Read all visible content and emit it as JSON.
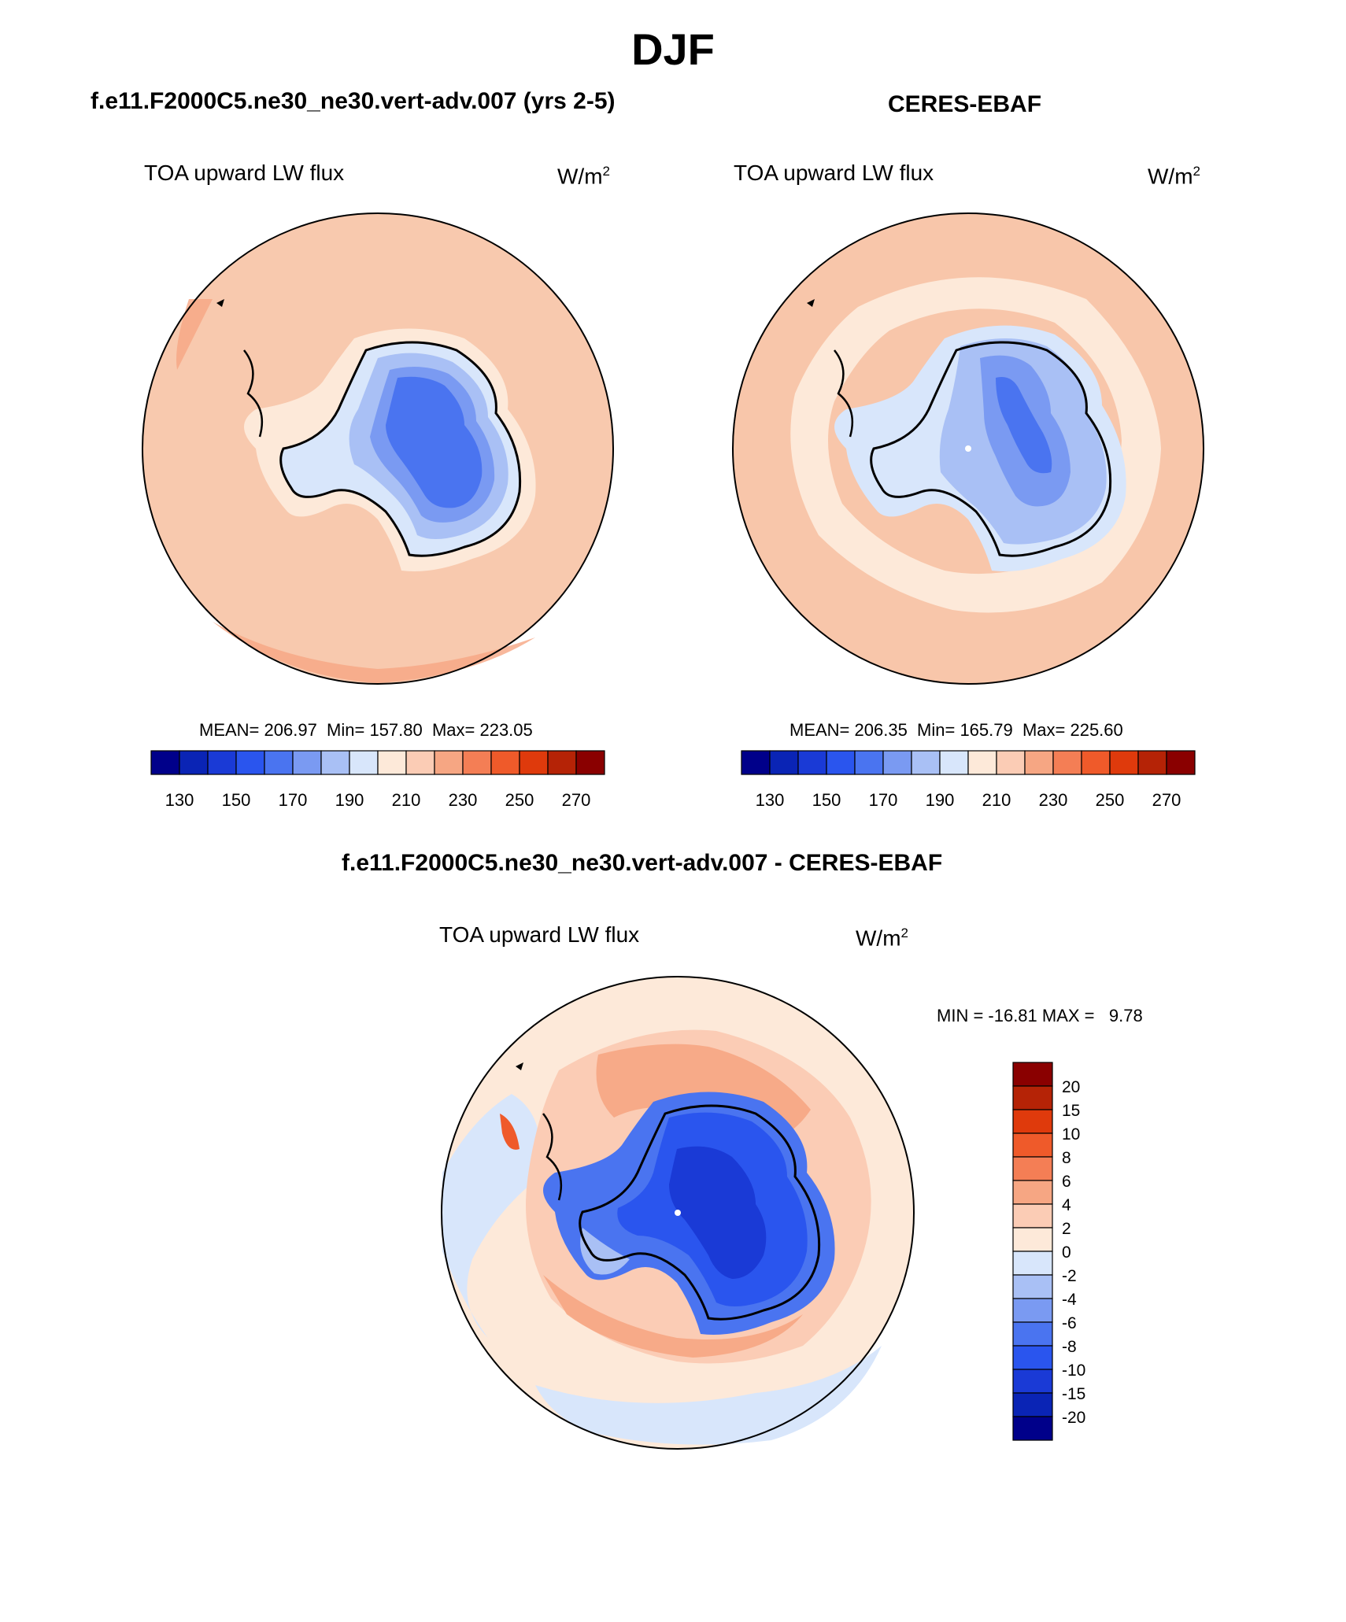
{
  "page_title": "DJF",
  "panels": [
    {
      "title": "f.e11.F2000C5.ne30_ne30.vert-adv.007 (yrs 2-5)",
      "variable": "TOA upward LW flux",
      "units_base": "W/m",
      "units_exp": "2",
      "stats": "MEAN= 206.97  Min= 157.80  Max= 223.05",
      "colorbar_labels": [
        "130",
        "150",
        "170",
        "190",
        "210",
        "230",
        "250",
        "270"
      ]
    },
    {
      "title": "CERES-EBAF",
      "variable": "TOA upward LW flux",
      "units_base": "W/m",
      "units_exp": "2",
      "stats": "MEAN= 206.35  Min= 165.79  Max= 225.60",
      "colorbar_labels": [
        "130",
        "150",
        "170",
        "190",
        "210",
        "230",
        "250",
        "270"
      ]
    }
  ],
  "diff_panel": {
    "title": "f.e11.F2000C5.ne30_ne30.vert-adv.007 - CERES-EBAF",
    "variable": "TOA upward LW flux",
    "units_base": "W/m",
    "units_exp": "2",
    "stats": "MIN = -16.81 MAX =   9.78",
    "colorbar_labels": [
      "20",
      "15",
      "10",
      "8",
      "6",
      "4",
      "2",
      "0",
      "-2",
      "-4",
      "-6",
      "-8",
      "-10",
      "-15",
      "-20"
    ]
  },
  "colors": {
    "palette_16": [
      "#00008a",
      "#0a24b5",
      "#1a3ad6",
      "#2a55ee",
      "#4a74f0",
      "#7a9af2",
      "#a9c0f5",
      "#d8e6fb",
      "#fde9d9",
      "#fbccb5",
      "#f6a683",
      "#f47e55",
      "#ef5a2a",
      "#df3a0c",
      "#b52306",
      "#8a0000"
    ],
    "ocean_model": "#f8c9ae",
    "ocean_obs": "#f8c6aa",
    "coast": "#000000"
  }
}
